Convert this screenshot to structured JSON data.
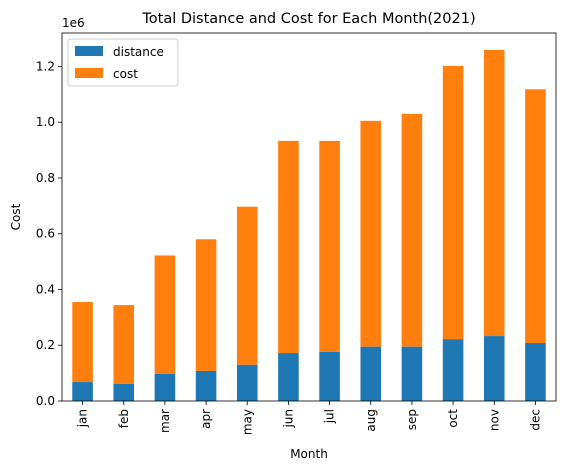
{
  "chart_data": {
    "type": "bar",
    "stacked": true,
    "title": "Total Distance and Cost for Each Month(2021)",
    "xlabel": "Month",
    "ylabel": "Cost",
    "y_offset_label": "1e6",
    "ylim": [
      0,
      1.32
    ],
    "yticks": [
      0.0,
      0.2,
      0.4,
      0.6,
      0.8,
      1.0,
      1.2
    ],
    "grid": false,
    "legend_position": "top-left",
    "categories": [
      "jan",
      "feb",
      "mar",
      "apr",
      "may",
      "jun",
      "jul",
      "aug",
      "sep",
      "oct",
      "nov",
      "dec"
    ],
    "series": [
      {
        "name": "distance",
        "color": "#1f77b4",
        "values": [
          0.068,
          0.062,
          0.097,
          0.108,
          0.13,
          0.172,
          0.176,
          0.195,
          0.195,
          0.222,
          0.233,
          0.208
        ]
      },
      {
        "name": "cost",
        "color": "#ff7f0e",
        "values": [
          0.287,
          0.282,
          0.425,
          0.472,
          0.567,
          0.761,
          0.757,
          0.81,
          0.835,
          0.98,
          1.026,
          0.91
        ]
      }
    ]
  }
}
